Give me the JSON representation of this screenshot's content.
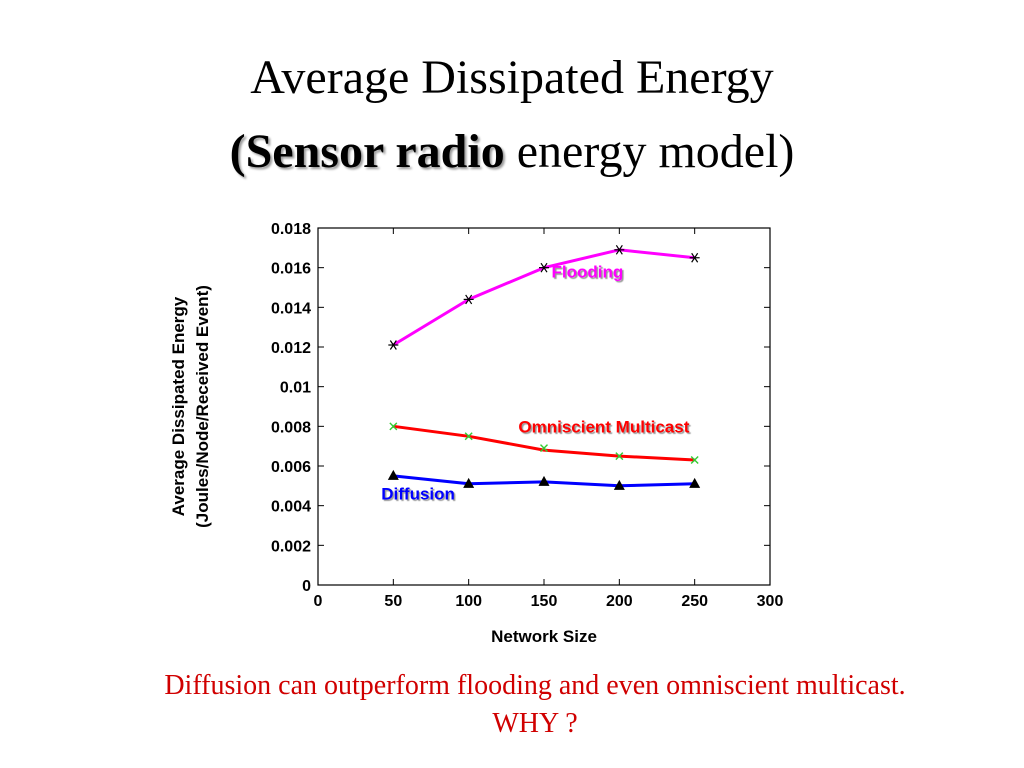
{
  "title": {
    "line1": "Average Dissipated Energy",
    "line2_open": "(",
    "line2_bold": "Sensor radio",
    "line2_rest": " energy model)"
  },
  "caption": {
    "line1": "Diffusion can outperform flooding and even omniscient multicast.",
    "line2": "WHY ?"
  },
  "chart_data": {
    "type": "line",
    "xlabel": "Network Size",
    "ylabel_line1": "Average Dissipated Energy",
    "ylabel_line2": "(Joules/Node/Received Event)",
    "xlim": [
      0,
      300
    ],
    "ylim": [
      0,
      0.018
    ],
    "xticks": [
      0,
      50,
      100,
      150,
      200,
      250,
      300
    ],
    "yticks": [
      0,
      0.002,
      0.004,
      0.006,
      0.008,
      0.01,
      0.012,
      0.014,
      0.016,
      0.018
    ],
    "xtick_labels": [
      "0",
      "50",
      "100",
      "150",
      "200",
      "250",
      "300"
    ],
    "ytick_labels": [
      "0",
      "0.002",
      "0.004",
      "0.006",
      "0.008",
      "0.01",
      "0.012",
      "0.014",
      "0.016",
      "0.018"
    ],
    "grid": false,
    "series": [
      {
        "name": "Flooding",
        "color": "#ff00ff",
        "marker": "asterisk",
        "marker_color": "#000000",
        "x": [
          50,
          100,
          150,
          200,
          250
        ],
        "line_y": [
          0.0121,
          0.0144,
          0.016,
          0.0169,
          0.0165
        ],
        "marker_y": [
          0.0121,
          0.0144,
          0.016,
          0.0169,
          0.0165
        ]
      },
      {
        "name": "Omniscient Multicast",
        "color": "#ff0000",
        "marker": "x",
        "marker_color": "#33cc33",
        "x": [
          50,
          100,
          150,
          200,
          250
        ],
        "line_y": [
          0.008,
          0.0075,
          0.0068,
          0.0065,
          0.0063
        ],
        "marker_y": [
          0.008,
          0.0075,
          0.0069,
          0.0065,
          0.0063
        ]
      },
      {
        "name": "Diffusion",
        "color": "#0000ff",
        "marker": "triangle",
        "marker_color": "#000000",
        "x": [
          50,
          100,
          150,
          200,
          250
        ],
        "line_y": [
          0.0055,
          0.0051,
          0.0052,
          0.005,
          0.0051
        ],
        "marker_y": [
          0.0055,
          0.0051,
          0.0052,
          0.005,
          0.0051
        ]
      }
    ],
    "annotations": [
      {
        "text": "Flooding",
        "color": "#ff00ff",
        "x": 155,
        "y": 0.0155
      },
      {
        "text": "Omniscient Multicast",
        "color": "#ff0000",
        "x": 133,
        "y": 0.0077
      },
      {
        "text": "Diffusion",
        "color": "#0000ff",
        "x": 42,
        "y": 0.0043
      }
    ]
  }
}
